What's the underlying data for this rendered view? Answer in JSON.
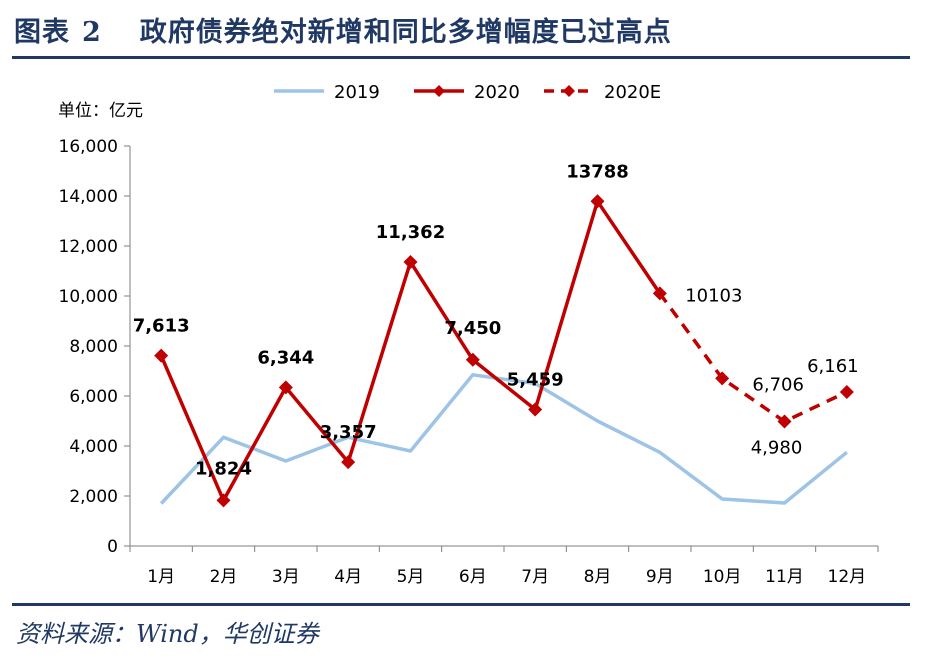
{
  "figure": {
    "label": "图表",
    "number": "2",
    "title": "政府债券绝对新增和同比多增幅度已过高点",
    "source": "资料来源：Wind，华创证券"
  },
  "colors": {
    "accent": "#1f3864",
    "series_2019": "#9dc3e6",
    "series_2020": "#c00000"
  },
  "chart_data": {
    "type": "line",
    "unit_label": "单位：亿元",
    "categories": [
      "1月",
      "2月",
      "3月",
      "4月",
      "5月",
      "6月",
      "7月",
      "8月",
      "9月",
      "10月",
      "11月",
      "12月"
    ],
    "ylim": [
      0,
      16000
    ],
    "yticks": [
      0,
      2000,
      4000,
      6000,
      8000,
      10000,
      12000,
      14000,
      16000
    ],
    "ytick_labels": [
      "0",
      "2,000",
      "4,000",
      "6,000",
      "8,000",
      "10,000",
      "12,000",
      "14,000",
      "16,000"
    ],
    "legend_position": "top",
    "grid": false,
    "series": [
      {
        "name": "2019",
        "style": "solid",
        "values": [
          1700,
          4350,
          3400,
          4350,
          3800,
          6850,
          6500,
          5000,
          3750,
          1880,
          1720,
          3750
        ]
      },
      {
        "name": "2020",
        "style": "solid-markers",
        "values": [
          7613,
          1824,
          6344,
          3357,
          11362,
          7450,
          5459,
          13788,
          10103,
          null,
          null,
          null
        ],
        "labels": [
          "7,613",
          "1,824",
          "6,344",
          "3,357",
          "11,362",
          "7,450",
          "5,459",
          "13788",
          "",
          "",
          "",
          ""
        ]
      },
      {
        "name": "2020E",
        "style": "dashed-markers",
        "values": [
          null,
          null,
          null,
          null,
          null,
          null,
          null,
          null,
          10103,
          6706,
          4980,
          6161
        ],
        "labels": [
          "",
          "",
          "",
          "",
          "",
          "",
          "",
          "",
          "10103",
          "6,706",
          "4,980",
          "6,161"
        ]
      }
    ]
  }
}
